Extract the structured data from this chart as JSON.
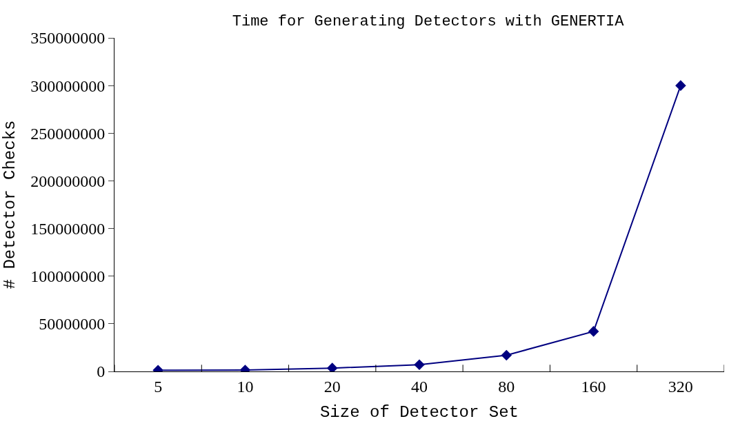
{
  "chart_data": {
    "type": "line",
    "title": "Time for Generating Detectors with GENERTIA",
    "xlabel": "Size of Detector Set",
    "ylabel": "# Detector Checks",
    "categories": [
      "5",
      "10",
      "20",
      "40",
      "80",
      "160",
      "320"
    ],
    "series": [
      {
        "color": "#000080",
        "values": [
          1200000,
          1500000,
          3500000,
          7000000,
          17000000,
          42000000,
          300000000
        ]
      }
    ],
    "ylim": [
      0,
      350000000
    ],
    "yticks": [
      0,
      50000000,
      100000000,
      150000000,
      200000000,
      250000000,
      300000000,
      350000000
    ],
    "marker": "diamond",
    "line_style": "solid",
    "legend": false
  }
}
